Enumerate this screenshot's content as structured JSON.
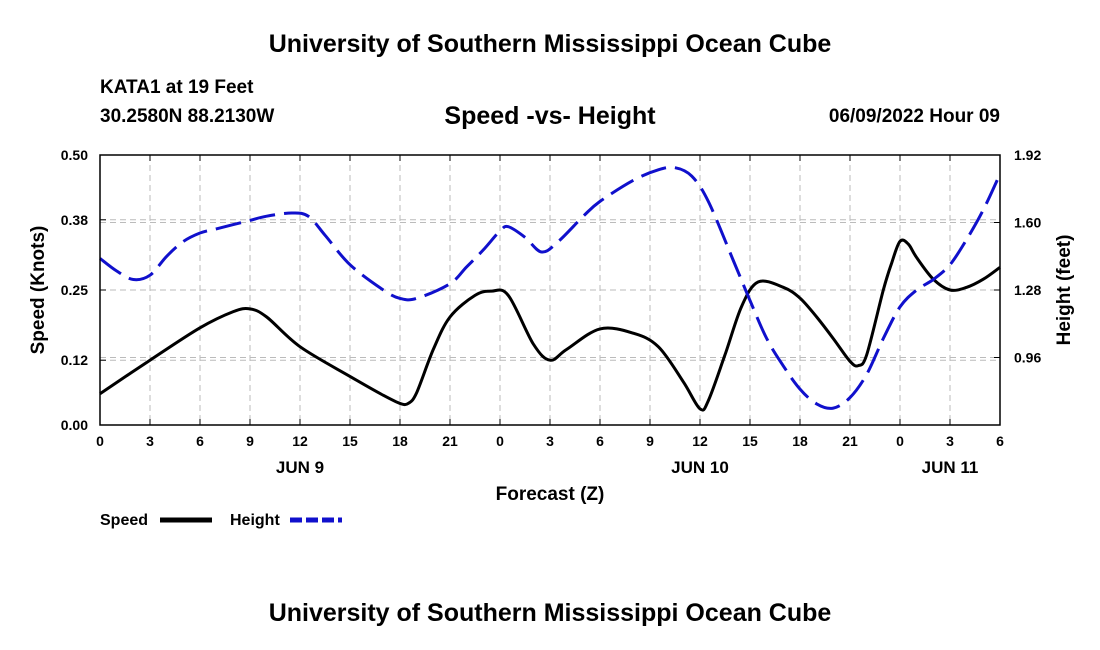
{
  "page": {
    "title": "University of Southern Mississippi Ocean Cube",
    "footer_title": "University of Southern Mississippi Ocean Cube",
    "station": "KATA1 at 19 Feet",
    "coordinates": "30.2580N  88.2130W",
    "subtitle": "Speed -vs- Height",
    "datetime": "06/09/2022 Hour 09"
  },
  "chart_data": {
    "type": "line",
    "xlabel": "Forecast (Z)",
    "ylabel": "Speed (Knots)",
    "y2label": "Height (feet)",
    "x_range_hours": [
      0,
      54
    ],
    "x_ticks": [
      {
        "h": 0,
        "label": "0"
      },
      {
        "h": 3,
        "label": "3"
      },
      {
        "h": 6,
        "label": "6"
      },
      {
        "h": 9,
        "label": "9"
      },
      {
        "h": 12,
        "label": "12"
      },
      {
        "h": 15,
        "label": "15"
      },
      {
        "h": 18,
        "label": "18"
      },
      {
        "h": 21,
        "label": "21"
      },
      {
        "h": 24,
        "label": "0"
      },
      {
        "h": 27,
        "label": "3"
      },
      {
        "h": 30,
        "label": "6"
      },
      {
        "h": 33,
        "label": "9"
      },
      {
        "h": 36,
        "label": "12"
      },
      {
        "h": 39,
        "label": "15"
      },
      {
        "h": 42,
        "label": "18"
      },
      {
        "h": 45,
        "label": "21"
      },
      {
        "h": 48,
        "label": "0"
      },
      {
        "h": 51,
        "label": "3"
      },
      {
        "h": 54,
        "label": "6"
      }
    ],
    "day_labels": [
      {
        "h": 12,
        "label": "JUN 9"
      },
      {
        "h": 36,
        "label": "JUN 10"
      },
      {
        "h": 51,
        "label": "JUN 11"
      }
    ],
    "y_left": {
      "min": 0,
      "max": 0.5,
      "ticks": [
        "0.00",
        "0.12",
        "0.25",
        "0.38",
        "0.50"
      ]
    },
    "y_right": {
      "min": 0.64,
      "max": 1.92,
      "ticks": [
        "0.96",
        "1.28",
        "1.60",
        "1.92"
      ]
    },
    "series": [
      {
        "name": "Speed",
        "axis": "left",
        "color": "#000000",
        "dash": "solid",
        "points": [
          [
            0,
            0.058
          ],
          [
            3,
            0.12
          ],
          [
            6,
            0.18
          ],
          [
            8,
            0.21
          ],
          [
            9,
            0.215
          ],
          [
            10,
            0.2
          ],
          [
            12,
            0.145
          ],
          [
            15,
            0.09
          ],
          [
            17,
            0.055
          ],
          [
            18,
            0.04
          ],
          [
            18.5,
            0.04
          ],
          [
            19,
            0.06
          ],
          [
            20,
            0.14
          ],
          [
            21,
            0.2
          ],
          [
            22.5,
            0.24
          ],
          [
            23.5,
            0.248
          ],
          [
            24.5,
            0.24
          ],
          [
            26,
            0.15
          ],
          [
            27,
            0.12
          ],
          [
            28,
            0.14
          ],
          [
            30,
            0.178
          ],
          [
            32,
            0.17
          ],
          [
            33.5,
            0.145
          ],
          [
            35,
            0.08
          ],
          [
            36,
            0.03
          ],
          [
            36.5,
            0.045
          ],
          [
            37.5,
            0.13
          ],
          [
            38.5,
            0.22
          ],
          [
            39.5,
            0.265
          ],
          [
            41,
            0.255
          ],
          [
            42,
            0.235
          ],
          [
            43,
            0.2
          ],
          [
            44,
            0.16
          ],
          [
            45,
            0.118
          ],
          [
            45.5,
            0.11
          ],
          [
            46,
            0.13
          ],
          [
            47,
            0.25
          ],
          [
            47.5,
            0.3
          ],
          [
            48,
            0.34
          ],
          [
            48.5,
            0.335
          ],
          [
            49,
            0.31
          ],
          [
            50,
            0.27
          ],
          [
            51,
            0.25
          ],
          [
            52,
            0.255
          ],
          [
            53,
            0.27
          ],
          [
            54,
            0.292
          ]
        ]
      },
      {
        "name": "Height",
        "axis": "right",
        "color": "#1010cc",
        "dash": "dashed",
        "points": [
          [
            0,
            1.43
          ],
          [
            1,
            1.37
          ],
          [
            2,
            1.33
          ],
          [
            3,
            1.35
          ],
          [
            4,
            1.44
          ],
          [
            5,
            1.51
          ],
          [
            6,
            1.55
          ],
          [
            7,
            1.57
          ],
          [
            8,
            1.59
          ],
          [
            9,
            1.61
          ],
          [
            10,
            1.63
          ],
          [
            11.5,
            1.645
          ],
          [
            12.5,
            1.63
          ],
          [
            13.5,
            1.54
          ],
          [
            15,
            1.4
          ],
          [
            17,
            1.28
          ],
          [
            18,
            1.24
          ],
          [
            19,
            1.24
          ],
          [
            21,
            1.31
          ],
          [
            22,
            1.39
          ],
          [
            23,
            1.47
          ],
          [
            24,
            1.56
          ],
          [
            24.5,
            1.58
          ],
          [
            25.5,
            1.53
          ],
          [
            26.5,
            1.46
          ],
          [
            27.5,
            1.51
          ],
          [
            29,
            1.63
          ],
          [
            30,
            1.7
          ],
          [
            32,
            1.8
          ],
          [
            33.5,
            1.85
          ],
          [
            34.5,
            1.86
          ],
          [
            35.5,
            1.82
          ],
          [
            36.5,
            1.7
          ],
          [
            38,
            1.42
          ],
          [
            39,
            1.23
          ],
          [
            40,
            1.05
          ],
          [
            41,
            0.92
          ],
          [
            42,
            0.81
          ],
          [
            43,
            0.74
          ],
          [
            44,
            0.72
          ],
          [
            45,
            0.77
          ],
          [
            46,
            0.88
          ],
          [
            47,
            1.05
          ],
          [
            48,
            1.2
          ],
          [
            49,
            1.28
          ],
          [
            50,
            1.33
          ],
          [
            51,
            1.4
          ],
          [
            52,
            1.52
          ],
          [
            53,
            1.66
          ],
          [
            54,
            1.83
          ]
        ]
      }
    ],
    "legend": {
      "position": "bottom-left",
      "entries": [
        "Speed",
        "Height"
      ]
    }
  }
}
